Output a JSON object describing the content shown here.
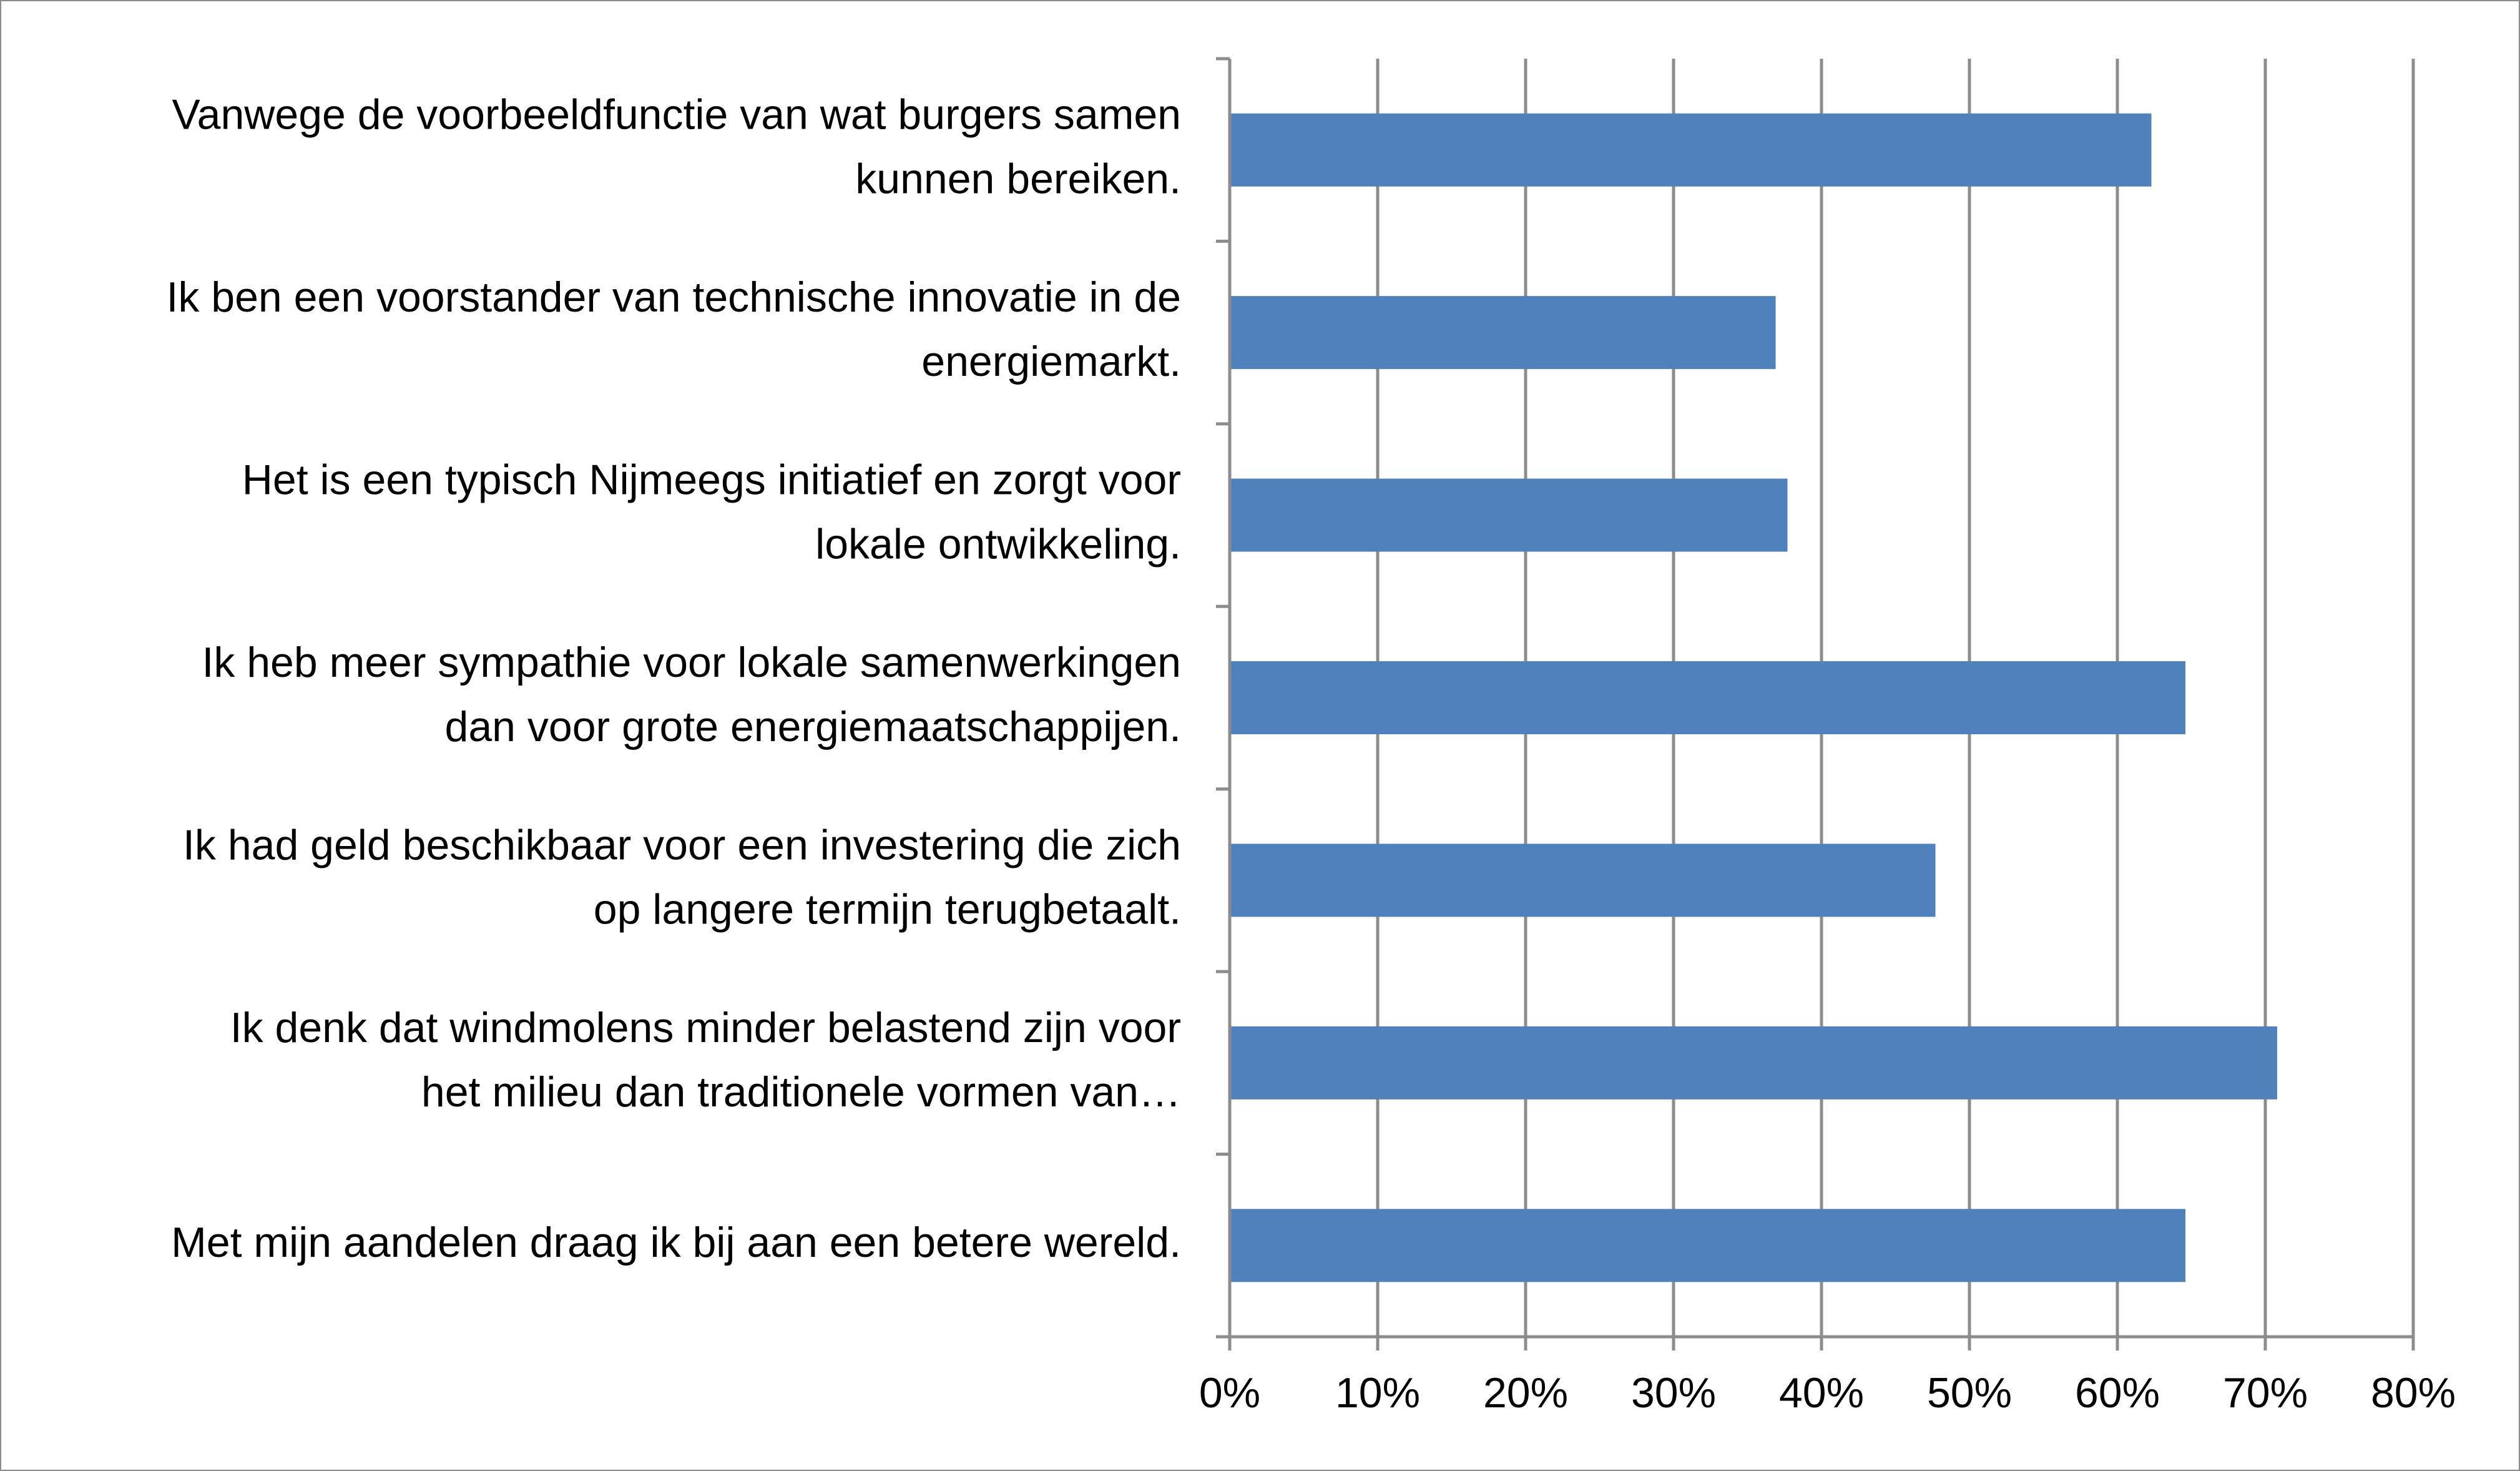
{
  "chart_data": {
    "type": "bar",
    "orientation": "horizontal",
    "categories": [
      "Vanwege de voorbeeldfunctie van wat burgers samen kunnen bereiken.",
      "Ik ben een voorstander van technische innovatie in de energiemarkt.",
      "Het is een typisch Nijmeegs initiatief en zorgt voor lokale ontwikkeling.",
      "Ik heb meer sympathie voor lokale samenwerkingen dan voor grote energiemaatschappijen.",
      "Ik had geld beschikbaar voor een investering die zich op langere termijn terugbetaalt.",
      "Ik denk dat windmolens minder belastend zijn voor het milieu dan traditionele vormen van…",
      "Met mijn aandelen draag ik bij aan een betere wereld."
    ],
    "category_label_lines": [
      [
        "Vanwege de voorbeeldfunctie van wat burgers samen",
        "kunnen bereiken."
      ],
      [
        "Ik ben een voorstander van technische innovatie in de",
        "energiemarkt."
      ],
      [
        "Het is een typisch Nijmeegs initiatief en zorgt voor",
        "lokale ontwikkeling."
      ],
      [
        "Ik heb meer sympathie voor lokale samenwerkingen",
        "dan voor grote energiemaatschappijen."
      ],
      [
        "Ik had geld beschikbaar voor een investering die zich",
        "op langere termijn terugbetaalt."
      ],
      [
        "Ik denk dat windmolens minder belastend zijn voor",
        "het milieu dan traditionele vormen van…"
      ],
      [
        "Met mijn aandelen draag ik bij aan een betere wereld."
      ]
    ],
    "values": [
      62.3,
      36.9,
      37.7,
      64.6,
      47.7,
      70.8,
      64.6
    ],
    "xlim": [
      0,
      80
    ],
    "xticks": [
      0,
      10,
      20,
      30,
      40,
      50,
      60,
      70,
      80
    ],
    "xtick_labels": [
      "0%",
      "10%",
      "20%",
      "30%",
      "40%",
      "50%",
      "60%",
      "70%",
      "80%"
    ],
    "title": "",
    "xlabel": "",
    "ylabel": "",
    "grid": "vertical",
    "legend": "none",
    "bar_color": "#4f81bd",
    "gridline_color": "#8c8c8c"
  }
}
